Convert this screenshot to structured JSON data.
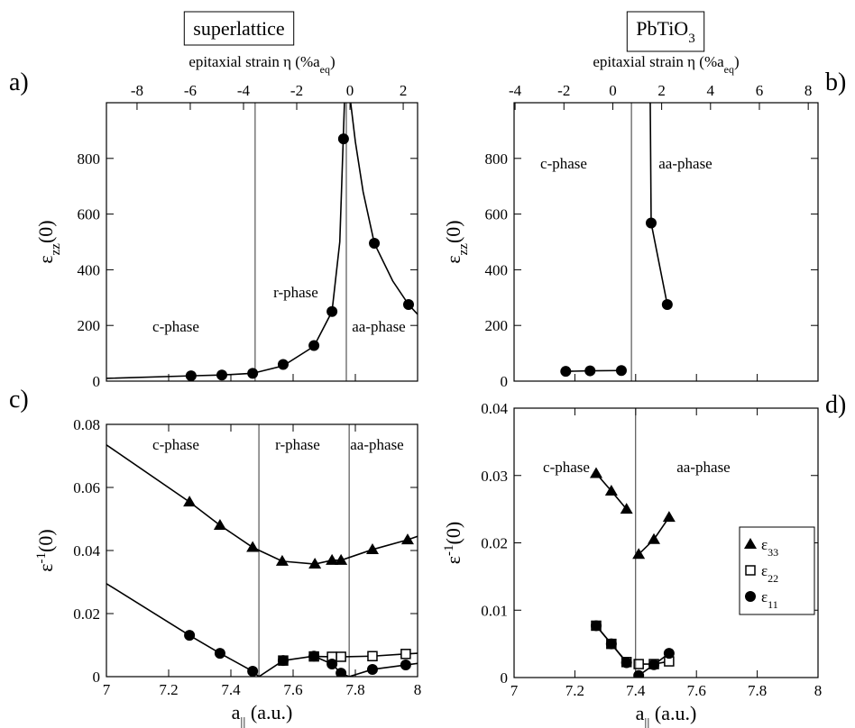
{
  "chart_data": [
    {
      "type": "line",
      "label": "a)",
      "title": [
        {
          "text": "superlattice"
        }
      ],
      "x2label": [
        {
          "text": "epitaxial strain  η  (%a"
        },
        {
          "text": "eq",
          "sub": true
        },
        {
          "text": ")"
        }
      ],
      "x2lim": [
        -9.15,
        2.54
      ],
      "x2ticks": [
        -8,
        -6,
        -4,
        -2,
        0,
        2
      ],
      "ylabel": [
        {
          "text": "ε"
        },
        {
          "text": "zz",
          "sub": true
        },
        {
          "text": "(0)"
        }
      ],
      "xlim": [
        7,
        8
      ],
      "xticks": [
        7,
        7.2,
        7.4,
        7.6,
        7.8,
        8
      ],
      "xtick_labels": false,
      "ylim": [
        0,
        1000
      ],
      "yticks": [
        0,
        200,
        400,
        600,
        800
      ],
      "boundaries": [
        7.478,
        7.771
      ],
      "annotations": [
        "c-phase",
        "r-phase",
        "aa-phase"
      ],
      "series": [
        {
          "marker": "circle",
          "color": "#000000",
          "x": [
            7.272,
            7.371,
            7.47,
            7.568,
            7.667,
            7.725,
            7.762,
            7.861,
            7.971
          ],
          "values": [
            19,
            22,
            28,
            60,
            128,
            250,
            870,
            495,
            275
          ]
        }
      ],
      "curves": [
        {
          "x": [
            7.0,
            7.272,
            7.371,
            7.47,
            7.568,
            7.667,
            7.725,
            7.75,
            7.765
          ],
          "values": [
            10,
            19,
            22,
            28,
            55,
            125,
            250,
            500,
            1000
          ]
        },
        {
          "x": [
            7.785,
            7.8,
            7.825,
            7.861,
            7.92,
            7.971,
            8.0
          ],
          "values": [
            1000,
            860,
            680,
            495,
            360,
            275,
            240
          ]
        }
      ]
    },
    {
      "type": "line",
      "label": "b)",
      "title": [
        {
          "text": "PbTiO"
        },
        {
          "text": "3",
          "sub": true
        }
      ],
      "x2label": [
        {
          "text": "epitaxial strain  η  (%a"
        },
        {
          "text": "eq",
          "sub": true
        },
        {
          "text": ")"
        }
      ],
      "x2lim": [
        -4.04,
        8.4
      ],
      "x2ticks": [
        -4,
        -2,
        0,
        2,
        4,
        6,
        8
      ],
      "ylabel": [
        {
          "text": "ε"
        },
        {
          "text": "zz",
          "sub": true
        },
        {
          "text": "(0)"
        }
      ],
      "xlim": [
        7,
        8
      ],
      "xticks": [
        7,
        7.2,
        7.4,
        7.6,
        7.8,
        8
      ],
      "xtick_labels": false,
      "ylim": [
        0,
        1000
      ],
      "yticks": [
        0,
        200,
        400,
        600,
        800
      ],
      "boundaries": [
        7.386
      ],
      "annotations": [
        "c-phase",
        "aa-phase"
      ],
      "series": [
        {
          "marker": "circle",
          "color": "#000000",
          "x": [
            7.17,
            7.25,
            7.353,
            7.451,
            7.504
          ],
          "values": [
            35,
            37,
            38,
            568,
            275
          ]
        }
      ],
      "curves": [
        {
          "x": [
            7.17,
            7.25,
            7.353
          ],
          "values": [
            35,
            37,
            38
          ]
        },
        {
          "x": [
            7.448,
            7.451,
            7.504
          ],
          "values": [
            1000,
            568,
            275
          ]
        }
      ]
    },
    {
      "type": "line",
      "label": "c)",
      "xlabel": [
        {
          "text": "a"
        },
        {
          "text": "||",
          "sub": true
        },
        {
          "text": " (a.u.)"
        }
      ],
      "ylabel": [
        {
          "text": "ε"
        },
        {
          "text": "-1",
          "sup": true
        },
        {
          "text": "(0)"
        }
      ],
      "xlim": [
        7,
        8
      ],
      "xticks": [
        7,
        7.2,
        7.4,
        7.6,
        7.8,
        8
      ],
      "ylim": [
        0,
        0.08
      ],
      "yticks": [
        0,
        0.02,
        0.04,
        0.06,
        0.08
      ],
      "boundaries": [
        7.49,
        7.78
      ],
      "annotations": [
        "c-phase",
        "r-phase",
        "aa-phase"
      ],
      "series": [
        {
          "marker": "triangle",
          "color": "#000000",
          "x": [
            7.267,
            7.365,
            7.47,
            7.565,
            7.67,
            7.725,
            7.754,
            7.855,
            7.968
          ],
          "values": [
            0.0554,
            0.048,
            0.041,
            0.0366,
            0.0357,
            0.0369,
            0.0369,
            0.0403,
            0.0434
          ]
        },
        {
          "marker": "square",
          "color": "#000000",
          "x": [
            7.568,
            7.667,
            7.725,
            7.754,
            7.855,
            7.962
          ],
          "values": [
            0.0051,
            0.0064,
            0.0063,
            0.0063,
            0.0065,
            0.0072
          ]
        },
        {
          "marker": "circle",
          "color": "#000000",
          "x": [
            7.267,
            7.365,
            7.47,
            7.568,
            7.667,
            7.725,
            7.754,
            7.855,
            7.962
          ],
          "values": [
            0.0131,
            0.0074,
            0.0017,
            0.0051,
            0.0065,
            0.004,
            0.0011,
            0.0023,
            0.0037
          ]
        }
      ],
      "curves": [
        {
          "x": [
            7.0,
            7.267,
            7.365,
            7.47,
            7.565,
            7.67,
            7.725,
            7.754,
            7.855,
            7.968,
            8.0
          ],
          "values": [
            0.0735,
            0.0554,
            0.048,
            0.041,
            0.0366,
            0.0357,
            0.0369,
            0.0369,
            0.0403,
            0.0434,
            0.0445
          ]
        },
        {
          "x": [
            7.0,
            7.267,
            7.365,
            7.47,
            7.49
          ],
          "values": [
            0.0295,
            0.0131,
            0.0074,
            0.0017,
            0.0
          ]
        },
        {
          "x": [
            7.49,
            7.568,
            7.667,
            7.725,
            7.754,
            7.78
          ],
          "values": [
            0.0,
            0.0051,
            0.0065,
            0.004,
            0.0011,
            0.0
          ]
        },
        {
          "x": [
            7.667,
            7.725,
            7.754,
            7.855,
            7.962,
            8.0
          ],
          "values": [
            0.0064,
            0.0063,
            0.0063,
            0.0065,
            0.0072,
            0.0074
          ]
        },
        {
          "x": [
            7.78,
            7.855,
            7.962,
            8.0
          ],
          "values": [
            0.0,
            0.0023,
            0.0037,
            0.0042
          ]
        }
      ]
    },
    {
      "type": "line",
      "label": "d)",
      "xlabel": [
        {
          "text": "a"
        },
        {
          "text": "||",
          "sub": true
        },
        {
          "text": " (a.u.)"
        }
      ],
      "ylabel": [
        {
          "text": "ε"
        },
        {
          "text": "-1",
          "sup": true
        },
        {
          "text": "(0)"
        }
      ],
      "xlim": [
        7,
        8
      ],
      "xticks": [
        7,
        7.2,
        7.4,
        7.6,
        7.8,
        8
      ],
      "ylim": [
        0,
        0.04
      ],
      "yticks": [
        0,
        0.01,
        0.02,
        0.03,
        0.04
      ],
      "boundaries": [
        7.4
      ],
      "annotations": [
        "c-phase",
        "aa-phase"
      ],
      "series": [
        {
          "name": [
            {
              "text": "ε"
            },
            {
              "text": "33",
              "sub": true
            }
          ],
          "marker": "triangle",
          "color": "#000000",
          "line": true,
          "x": [
            7.27,
            7.32,
            7.37,
            7.4,
            7.41,
            7.46,
            7.51
          ],
          "values": [
            0.0303,
            0.0277,
            0.025,
            null,
            0.0183,
            0.0205,
            0.0238
          ]
        },
        {
          "name": [
            {
              "text": "ε"
            },
            {
              "text": "22",
              "sub": true
            }
          ],
          "marker": "square",
          "color": "#000000",
          "line": true,
          "x": [
            7.27,
            7.32,
            7.37,
            7.4,
            7.41,
            7.46,
            7.51
          ],
          "values": [
            0.0077,
            0.005,
            0.0023,
            null,
            0.002,
            0.002,
            0.0024
          ]
        },
        {
          "name": [
            {
              "text": "ε"
            },
            {
              "text": "11",
              "sub": true
            }
          ],
          "marker": "circle",
          "color": "#000000",
          "line": true,
          "x": [
            7.27,
            7.32,
            7.37,
            7.4,
            7.41,
            7.46,
            7.51
          ],
          "values": [
            0.0077,
            0.005,
            0.0022,
            null,
            0.0003,
            0.0019,
            0.0036
          ]
        }
      ],
      "legend": "lower right"
    }
  ]
}
